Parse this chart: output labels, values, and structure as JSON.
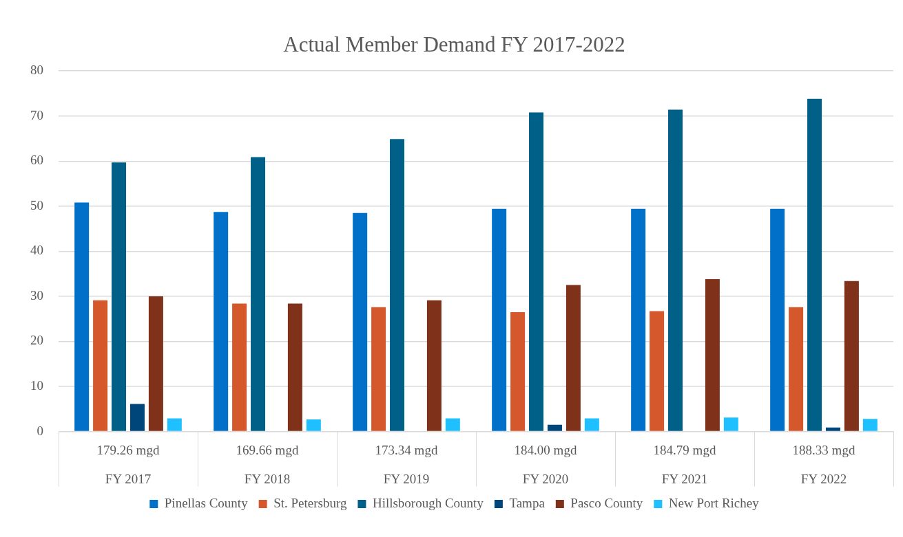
{
  "chart_data": {
    "type": "bar",
    "title": "Actual Member Demand FY 2017-2022",
    "categories": [
      "FY 2017",
      "FY 2018",
      "FY 2019",
      "FY 2020",
      "FY 2021",
      "FY 2022"
    ],
    "series": [
      {
        "name": "Pinellas County",
        "color": "#0070c8",
        "values": [
          50.8,
          48.7,
          48.5,
          49.4,
          49.4,
          49.4
        ]
      },
      {
        "name": "St. Petersburg",
        "color": "#d5572c",
        "values": [
          29.1,
          28.4,
          27.6,
          26.5,
          26.7,
          27.6
        ]
      },
      {
        "name": "Hillsborough County",
        "color": "#006087",
        "values": [
          59.7,
          60.9,
          64.9,
          70.8,
          71.4,
          73.8
        ]
      },
      {
        "name": "Tampa",
        "color": "#00467a",
        "values": [
          6.1,
          null,
          null,
          1.5,
          null,
          0.9
        ]
      },
      {
        "name": "Pasco County",
        "color": "#80311a",
        "values": [
          30.0,
          28.4,
          29.1,
          32.5,
          33.8,
          33.4
        ]
      },
      {
        "name": "New Port Richey",
        "color": "#1fc0ff",
        "values": [
          2.9,
          2.7,
          2.9,
          2.9,
          3.1,
          2.8
        ]
      }
    ],
    "ylim": [
      0,
      80
    ],
    "yticks": [
      0,
      10,
      20,
      30,
      40,
      50,
      60,
      70,
      80
    ],
    "grid": "y",
    "legend": "bottom",
    "annotations": [
      "179.26 mgd",
      "169.66 mgd",
      "173.34 mgd",
      "184.00 mgd",
      "184.79 mgd",
      "188.33 mgd"
    ]
  }
}
